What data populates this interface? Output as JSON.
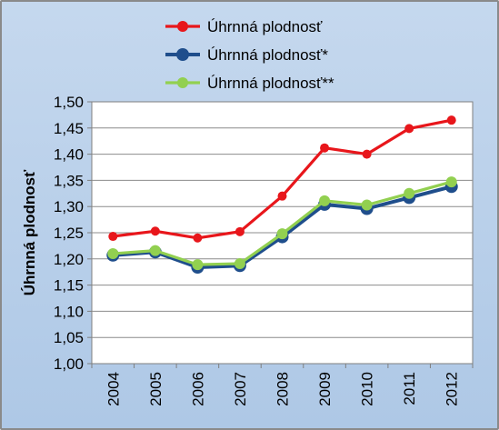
{
  "chart_data": {
    "type": "line",
    "categories": [
      "2004",
      "2005",
      "2006",
      "2007",
      "2008",
      "2009",
      "2010",
      "2011",
      "2012"
    ],
    "series": [
      {
        "name": "Úhrnná plodnosť",
        "color": "#e8161b",
        "values": [
          1.243,
          1.253,
          1.24,
          1.252,
          1.32,
          1.412,
          1.4,
          1.449,
          1.465
        ]
      },
      {
        "name": "Úhrnná plodnosť*",
        "color": "#1f4e8c",
        "values": [
          1.207,
          1.213,
          1.184,
          1.187,
          1.242,
          1.304,
          1.296,
          1.317,
          1.338
        ]
      },
      {
        "name": "Úhrnná plodnosť**",
        "color": "#92d050",
        "values": [
          1.21,
          1.216,
          1.189,
          1.191,
          1.248,
          1.311,
          1.303,
          1.325,
          1.347
        ]
      }
    ],
    "ylabel": "Úhrnná plodnosť",
    "xlabel": "",
    "ylim": [
      1.0,
      1.5
    ],
    "yticks": [
      "1,00",
      "1,05",
      "1,10",
      "1,15",
      "1,20",
      "1,25",
      "1,30",
      "1,35",
      "1,40",
      "1,45",
      "1,50"
    ],
    "grid": true,
    "legend_position": "top"
  }
}
